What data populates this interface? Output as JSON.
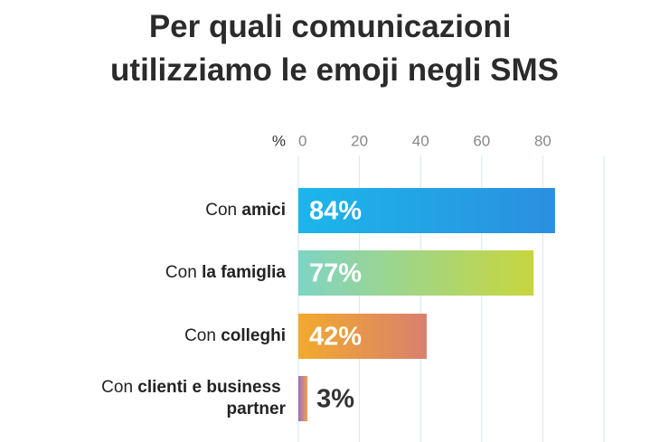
{
  "chart_data": {
    "type": "bar",
    "orientation": "horizontal",
    "title": "Per quali comunicazioni utilizziamo le emoji negli SMS",
    "x_axis_label": "%",
    "categories": [
      "Con amici",
      "Con la famiglia",
      "Con colleghi",
      "Con clienti e business partner"
    ],
    "values": [
      84,
      77,
      42,
      3
    ],
    "value_labels": [
      "84%",
      "77%",
      "42%",
      "3%"
    ],
    "colors": [
      [
        "#1cb6ea",
        "#2a8fe0"
      ],
      [
        "#7fd4c4",
        "#c8d63e"
      ],
      [
        "#f2aa2e",
        "#d9806e"
      ],
      [
        "#9a6ec4",
        "#f2a24a"
      ]
    ],
    "xlim": [
      0,
      100
    ],
    "xticks": [
      0,
      20,
      40,
      60,
      80
    ],
    "grid": true
  }
}
